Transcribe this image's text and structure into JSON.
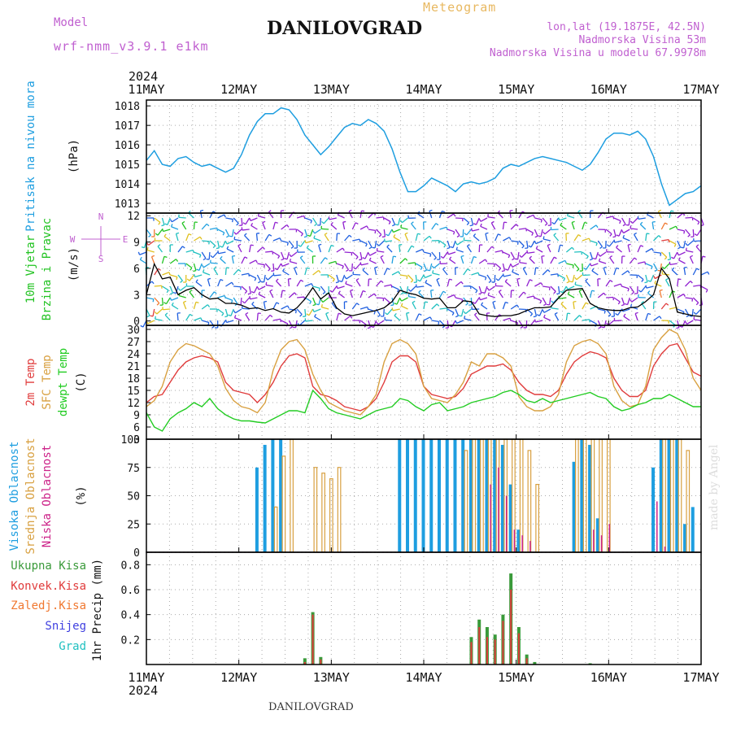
{
  "header": {
    "model_label": "Model",
    "model_name": "wrf-nmm_v3.9.1 e1km",
    "station": "DANILOVGRAD",
    "meteogram": "Meteogram",
    "lonlat": "lon,lat (19.1875E, 42.5N)",
    "altitude": "Nadmorska Visina 53m",
    "model_altitude": "Nadmorska Visina u modelu 67.9978m",
    "footer_station": "DANILOVGRAD",
    "credit": "made by Angel"
  },
  "time_axis": {
    "year": "2024",
    "labels": [
      "11MAY",
      "12MAY",
      "13MAY",
      "14MAY",
      "15MAY",
      "16MAY",
      "17MAY"
    ]
  },
  "colors": {
    "pressure": "#1e9ee0",
    "wind_green": "#22c322",
    "temp2m": "#e03c3c",
    "sfc": "#d8a040",
    "dew": "#22cc22",
    "high_cloud": "#1e9ee0",
    "mid_cloud": "#d8a040",
    "low_cloud": "#cc2288",
    "total_precip": "#3a9a3a",
    "conv_precip": "#e03c3c",
    "frozen": "#f07830",
    "snow": "#4040e0",
    "hail": "#20c0c0",
    "purple": "#c060d0"
  },
  "chart_data": [
    {
      "type": "line",
      "panel": "pressure",
      "ylabel": "Pritisak na nivou mora",
      "unit": "(hPa)",
      "ylim": [
        1012.5,
        1018.3
      ],
      "yticks": [
        1013,
        1014,
        1015,
        1016,
        1017,
        1018
      ],
      "series": [
        {
          "values": [
            1015.2,
            1015.7,
            1015.0,
            1014.9,
            1015.3,
            1015.4,
            1015.1,
            1014.9,
            1015.0,
            1014.8,
            1014.6,
            1014.8,
            1015.5,
            1016.5,
            1017.2,
            1017.6,
            1017.6,
            1017.9,
            1017.8,
            1017.3,
            1016.5,
            1016.0,
            1015.5,
            1015.9,
            1016.4,
            1016.9,
            1017.1,
            1017.0,
            1017.3,
            1017.1,
            1016.7,
            1015.8,
            1014.6,
            1013.6,
            1013.6,
            1013.9,
            1014.3,
            1014.1,
            1013.9,
            1013.6,
            1014.0,
            1014.1,
            1014.0,
            1014.1,
            1014.3,
            1014.8,
            1015.0,
            1014.9,
            1015.1,
            1015.3,
            1015.4,
            1015.3,
            1015.2,
            1015.1,
            1014.9,
            1014.7,
            1015.0,
            1015.6,
            1016.3,
            1016.6,
            1016.6,
            1016.5,
            1016.7,
            1016.3,
            1015.4,
            1014.0,
            1012.9,
            1013.2,
            1013.5,
            1013.6,
            1013.9
          ]
        }
      ]
    },
    {
      "type": "line",
      "panel": "wind",
      "ylabel": [
        "10m Vjetar",
        "Brzina i Pravac"
      ],
      "unit": "(m/s)",
      "ylim": [
        -0.5,
        12.3
      ],
      "yticks": [
        0,
        3,
        6,
        9,
        12
      ],
      "compass": {
        "n": "N",
        "w": "W",
        "e": "E",
        "s": "S"
      },
      "series": [
        {
          "values": [
            3.0,
            6.5,
            4.8,
            5.0,
            3.0,
            3.5,
            3.8,
            3.0,
            2.5,
            2.6,
            2.0,
            2.0,
            1.8,
            1.4,
            1.5,
            1.2,
            1.4,
            1.0,
            0.9,
            1.5,
            2.5,
            3.8,
            2.5,
            3.2,
            1.5,
            0.8,
            0.6,
            0.8,
            1.0,
            1.2,
            1.5,
            2.2,
            3.5,
            3.2,
            3.0,
            2.6,
            2.5,
            2.6,
            1.5,
            1.5,
            2.3,
            2.2,
            0.8,
            0.6,
            0.5,
            0.6,
            0.6,
            0.8,
            1.2,
            1.5,
            1.5,
            1.6,
            2.6,
            3.5,
            3.6,
            3.7,
            2.0,
            1.5,
            1.3,
            1.2,
            1.2,
            1.5,
            1.6,
            2.2,
            3.0,
            6.0,
            4.8,
            1.0,
            0.8,
            0.6,
            0.5
          ]
        }
      ]
    },
    {
      "type": "line",
      "panel": "temperature",
      "ylabel": [
        "2m Temp",
        "SFC Temp",
        "dewpt Temp"
      ],
      "unit": "(C)",
      "ylim": [
        3,
        31
      ],
      "yticks": [
        3,
        6,
        9,
        12,
        15,
        18,
        21,
        24,
        27,
        30
      ],
      "series": [
        {
          "name": "2m Temp",
          "values": [
            12,
            13.5,
            14,
            17,
            20,
            22,
            23,
            23.5,
            23,
            22,
            17,
            15,
            14.5,
            14,
            12,
            14,
            17,
            21,
            23.5,
            24,
            23,
            16,
            14,
            13.5,
            12.5,
            11,
            10.5,
            10,
            11,
            13,
            17,
            22,
            23.5,
            23.5,
            22,
            16,
            14,
            13.5,
            13,
            13.5,
            15.5,
            19,
            20,
            21,
            21,
            21.5,
            20,
            17,
            15,
            14,
            14,
            13.5,
            15,
            19,
            22,
            23.5,
            24.5,
            24,
            23,
            18,
            15,
            13.5,
            13.5,
            15,
            21,
            24,
            26,
            26.5,
            23,
            19.5,
            18.5
          ]
        },
        {
          "name": "SFC Temp",
          "values": [
            11,
            12.5,
            16,
            22,
            25,
            26.5,
            26,
            25,
            24,
            21,
            15.5,
            12.5,
            11,
            10.5,
            9.5,
            12,
            20,
            25,
            27,
            27.5,
            25,
            19,
            15,
            12,
            11,
            10,
            9.5,
            9,
            11,
            14,
            22,
            26.5,
            27.5,
            26.5,
            24,
            16,
            13,
            12.5,
            12,
            14,
            17,
            22,
            21,
            24,
            24,
            23,
            21,
            13.5,
            11,
            10,
            10,
            11,
            14,
            22,
            26,
            27,
            27.5,
            26.5,
            24,
            16,
            12.5,
            11,
            11.5,
            16,
            25,
            28,
            30,
            29,
            25,
            18,
            15
          ]
        },
        {
          "name": "dewpt Temp",
          "values": [
            9.5,
            6,
            5,
            8,
            9.5,
            10.5,
            12,
            11,
            13,
            10.5,
            9,
            8,
            7.5,
            7.5,
            7.2,
            7,
            8,
            9,
            10,
            10,
            9.5,
            15,
            13,
            10.5,
            9.5,
            9,
            8.5,
            8,
            9,
            10,
            10.5,
            11,
            13,
            12.5,
            11,
            10,
            11.5,
            12,
            10,
            10.5,
            11,
            12,
            12.5,
            13,
            13.5,
            14.5,
            15,
            14,
            12.5,
            12,
            13,
            12,
            12.5,
            13,
            13.5,
            14,
            14.5,
            13.5,
            13,
            11,
            10,
            10.5,
            11.5,
            12,
            13,
            13,
            14,
            13,
            12,
            11,
            11
          ]
        }
      ]
    },
    {
      "type": "bar",
      "panel": "clouds",
      "ylabel": [
        "Visoka Oblacnost",
        "Srednja Oblacnost",
        "Niska Oblacnost"
      ],
      "unit": "(%)",
      "ylim": [
        0,
        100
      ],
      "yticks": [
        0,
        25,
        50,
        75,
        100
      ],
      "series": [
        {
          "name": "Visoka Oblacnost",
          "values": [
            0,
            0,
            0,
            0,
            0,
            0,
            0,
            0,
            0,
            0,
            0,
            0,
            0,
            0,
            75,
            95,
            100,
            100,
            0,
            0,
            0,
            0,
            0,
            0,
            0,
            0,
            0,
            0,
            0,
            0,
            0,
            0,
            100,
            100,
            100,
            100,
            100,
            100,
            100,
            100,
            100,
            100,
            100,
            100,
            100,
            95,
            60,
            20,
            0,
            0,
            0,
            0,
            0,
            0,
            80,
            100,
            95,
            30,
            0,
            0,
            0,
            0,
            0,
            0,
            75,
            100,
            100,
            100,
            25,
            40,
            0
          ]
        },
        {
          "name": "Srednja Oblacnost",
          "values": [
            0,
            0,
            0,
            0,
            0,
            0,
            0,
            0,
            0,
            0,
            0,
            0,
            0,
            0,
            0,
            0,
            40,
            85,
            100,
            0,
            0,
            75,
            70,
            65,
            75,
            0,
            0,
            0,
            0,
            0,
            0,
            0,
            0,
            0,
            0,
            0,
            0,
            0,
            0,
            0,
            90,
            100,
            100,
            100,
            100,
            100,
            100,
            100,
            90,
            60,
            0,
            0,
            0,
            0,
            100,
            100,
            100,
            100,
            100,
            0,
            0,
            0,
            0,
            0,
            0,
            100,
            100,
            100,
            90,
            0,
            0
          ]
        },
        {
          "name": "Niska Oblacnost",
          "values": [
            0,
            0,
            0,
            0,
            0,
            0,
            0,
            0,
            0,
            0,
            0,
            0,
            0,
            0,
            0,
            0,
            0,
            0,
            0,
            0,
            0,
            0,
            0,
            0,
            0,
            0,
            0,
            0,
            0,
            0,
            0,
            0,
            0,
            0,
            0,
            0,
            0,
            0,
            0,
            0,
            0,
            0,
            0,
            60,
            75,
            50,
            20,
            15,
            10,
            0,
            0,
            0,
            0,
            0,
            0,
            0,
            20,
            15,
            25,
            0,
            0,
            0,
            0,
            0,
            45,
            5,
            0,
            0,
            0,
            0,
            0
          ]
        }
      ]
    },
    {
      "type": "bar",
      "panel": "precipitation",
      "ylabel": "1hr Precip (mm)",
      "legend": [
        "Ukupna Kisa",
        "Konvek.Kisa",
        "Zaledj.Kisa",
        "Snijeg",
        "Grad"
      ],
      "ylim": [
        0,
        0.9
      ],
      "yticks": [
        0.2,
        0.4,
        0.6,
        0.8
      ],
      "series": [
        {
          "name": "Ukupna Kisa",
          "values": [
            0,
            0,
            0,
            0,
            0,
            0,
            0,
            0,
            0,
            0,
            0,
            0,
            0,
            0,
            0,
            0,
            0,
            0,
            0,
            0,
            0.05,
            0.42,
            0.06,
            0,
            0,
            0,
            0,
            0,
            0,
            0,
            0,
            0,
            0,
            0,
            0,
            0,
            0,
            0,
            0,
            0,
            0,
            0.22,
            0.36,
            0.3,
            0.24,
            0.4,
            0.73,
            0.3,
            0.08,
            0.02,
            0,
            0,
            0,
            0,
            0,
            0,
            0.01,
            0,
            0,
            0,
            0,
            0,
            0,
            0,
            0,
            0,
            0,
            0,
            0,
            0,
            0
          ]
        },
        {
          "name": "Konvek.Kisa",
          "values": [
            0,
            0,
            0,
            0,
            0,
            0,
            0,
            0,
            0,
            0,
            0,
            0,
            0,
            0,
            0,
            0,
            0,
            0,
            0,
            0,
            0.02,
            0.4,
            0.04,
            0,
            0,
            0,
            0,
            0,
            0,
            0,
            0,
            0,
            0,
            0,
            0,
            0,
            0,
            0,
            0,
            0,
            0,
            0.18,
            0.3,
            0.22,
            0.2,
            0.35,
            0.6,
            0.25,
            0.05,
            0,
            0,
            0,
            0,
            0,
            0,
            0,
            0,
            0,
            0,
            0,
            0,
            0,
            0,
            0,
            0,
            0,
            0,
            0,
            0,
            0,
            0
          ]
        }
      ]
    }
  ]
}
